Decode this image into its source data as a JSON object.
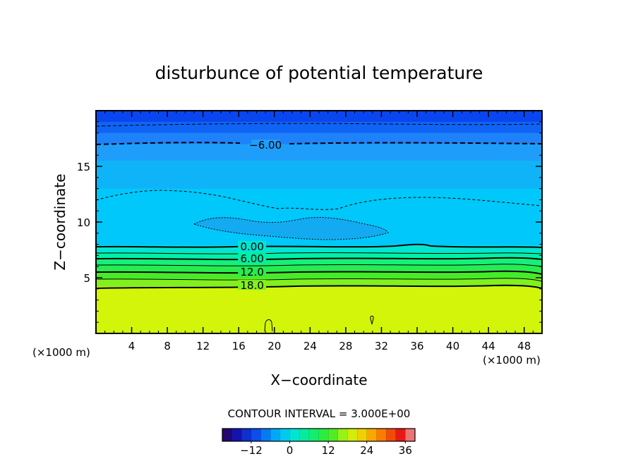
{
  "chart_data": {
    "type": "heatmap",
    "title": "disturbunce of potential temperature",
    "xlabel": "X−coordinate",
    "ylabel": "Z−coordinate",
    "x_unit_left": "(×1000 m)",
    "x_unit_right": "(×1000 m)",
    "xlim": [
      0,
      50
    ],
    "ylim": [
      0,
      20
    ],
    "x_ticks": [
      4,
      8,
      12,
      16,
      20,
      24,
      28,
      32,
      36,
      40,
      44,
      48
    ],
    "x_tick_labels": [
      "4",
      "8",
      "12",
      "16",
      "20",
      "24",
      "28",
      "32",
      "36",
      "40",
      "44",
      "48"
    ],
    "y_ticks": [
      5,
      10,
      15
    ],
    "y_tick_labels": [
      "5",
      "10",
      "15"
    ],
    "contour_interval_text": "CONTOUR INTERVAL = 3.000E+00",
    "contour_labels": [
      {
        "text": "−6.00",
        "x": 19.0,
        "z": 16.9
      },
      {
        "text": "0.00",
        "x": 17.5,
        "z": 7.8
      },
      {
        "text": "6.00",
        "x": 17.5,
        "z": 6.7
      },
      {
        "text": "12.0",
        "x": 17.5,
        "z": 5.5
      },
      {
        "text": "18.0",
        "x": 17.5,
        "z": 4.3
      }
    ],
    "colorbar": {
      "range": [
        -21,
        39
      ],
      "interval": 3,
      "ticks": [
        -12,
        0,
        12,
        24,
        36
      ],
      "tick_labels": [
        "−12",
        "0",
        "12",
        "24",
        "36"
      ]
    },
    "bands": [
      {
        "z_from": 19.0,
        "z_to": 20.0,
        "value": -15,
        "color": "#0a46f0"
      },
      {
        "z_from": 18.0,
        "z_to": 19.0,
        "value": -12,
        "color": "#0f64f5"
      },
      {
        "z_from": 17.0,
        "z_to": 18.0,
        "value": -9,
        "color": "#1e82fa"
      },
      {
        "z_from": 15.5,
        "z_to": 17.0,
        "value": -6,
        "color": "#1e9efa"
      },
      {
        "z_from": 13.0,
        "z_to": 15.5,
        "value": -4.5,
        "color": "#0fb4f8"
      },
      {
        "z_from": 7.9,
        "z_to": 13.0,
        "value": -3,
        "color": "#00c8fa"
      },
      {
        "z_from": 7.3,
        "z_to": 7.9,
        "value": 0,
        "color": "#00e6d2"
      },
      {
        "z_from": 6.7,
        "z_to": 7.3,
        "value": 3,
        "color": "#00f0aa"
      },
      {
        "z_from": 6.1,
        "z_to": 6.7,
        "value": 6,
        "color": "#14f078"
      },
      {
        "z_from": 5.5,
        "z_to": 6.1,
        "value": 9,
        "color": "#28eb50"
      },
      {
        "z_from": 4.9,
        "z_to": 5.5,
        "value": 12,
        "color": "#46eb28"
      },
      {
        "z_from": 4.2,
        "z_to": 4.9,
        "value": 15,
        "color": "#82f01e"
      },
      {
        "z_from": 0.0,
        "z_to": 4.2,
        "value": 18,
        "color": "#d2f50a"
      }
    ],
    "colors": {
      "frame": "#000000",
      "cloud_region": "#14aaf2"
    }
  }
}
